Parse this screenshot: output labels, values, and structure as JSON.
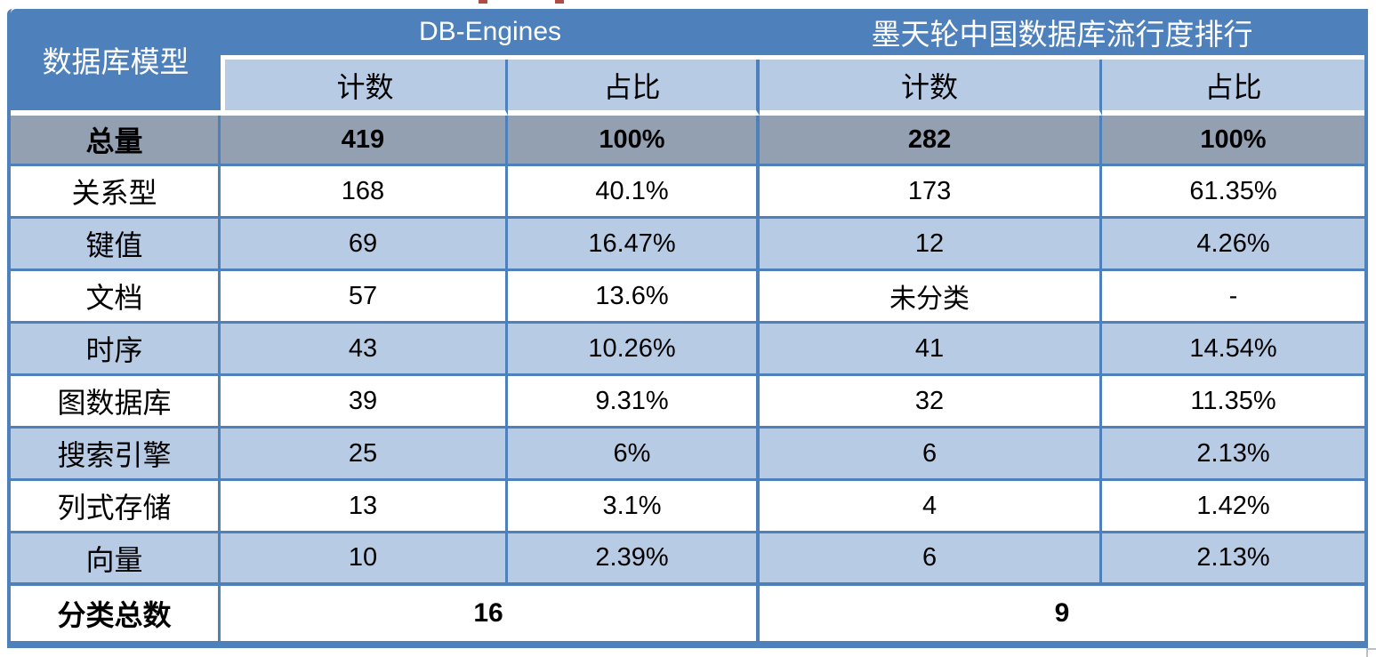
{
  "chart_data": {
    "type": "table",
    "corner_header": "数据库模型",
    "column_groups": [
      {
        "label": "DB-Engines",
        "columns": [
          "计数",
          "占比"
        ]
      },
      {
        "label": "墨天轮中国数据库流行度排行",
        "columns": [
          "计数",
          "占比"
        ]
      }
    ],
    "sub_headers": [
      "计数",
      "占比",
      "计数",
      "占比"
    ],
    "rows": [
      {
        "label": "总量",
        "values": [
          "419",
          "100%",
          "282",
          "100%"
        ]
      },
      {
        "label": "关系型",
        "values": [
          "168",
          "40.1%",
          "173",
          "61.35%"
        ]
      },
      {
        "label": "键值",
        "values": [
          "69",
          "16.47%",
          "12",
          "4.26%"
        ]
      },
      {
        "label": "文档",
        "values": [
          "57",
          "13.6%",
          "未分类",
          "-"
        ]
      },
      {
        "label": "时序",
        "values": [
          "43",
          "10.26%",
          "41",
          "14.54%"
        ]
      },
      {
        "label": "图数据库",
        "values": [
          "39",
          "9.31%",
          "32",
          "11.35%"
        ]
      },
      {
        "label": "搜索引擎",
        "values": [
          "25",
          "6%",
          "6",
          "2.13%"
        ]
      },
      {
        "label": "列式存储",
        "values": [
          "13",
          "3.1%",
          "4",
          "1.42%"
        ]
      },
      {
        "label": "向量",
        "values": [
          "10",
          "2.39%",
          "6",
          "2.13%"
        ]
      }
    ],
    "footer": {
      "label": "分类总数",
      "values": [
        "16",
        "9"
      ]
    }
  },
  "colors": {
    "header_blue": "#4E80BC",
    "light_blue": "#B7CBE5",
    "total_row_gray": "#93A0B2",
    "border_blue": "#4E80BC",
    "header_text": "#FFFFFF",
    "body_text": "#000000"
  }
}
